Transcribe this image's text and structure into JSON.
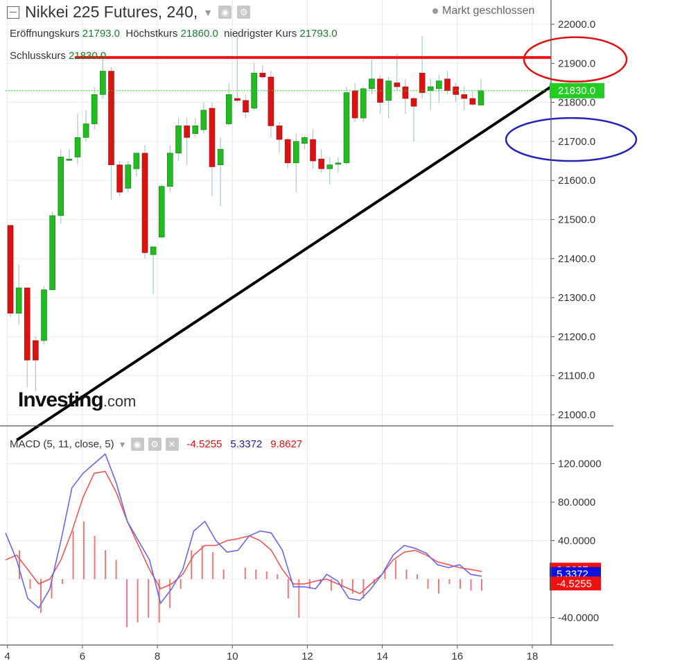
{
  "header": {
    "title": "Nikkei 225 Futures, 240,",
    "status": "Markt geschlossen"
  },
  "ohlc": {
    "open_label": "Eröffnungskurs",
    "open_value": "21793.0",
    "high_label": "Höchstkurs",
    "high_value": "21860.0",
    "low_label": "niedrigster Kurs",
    "low_value": "21793.0",
    "close_label": "Schlusskurs",
    "close_value": "21830.0"
  },
  "logo": {
    "name": "Investing",
    "suffix": ".com"
  },
  "colors": {
    "up": "#22bb22",
    "down": "#dd1111",
    "macd": "#6666ee",
    "signal": "#ee5555",
    "hist": "#ee7777"
  },
  "chart_data": [
    {
      "type": "candlestick",
      "x_ticks": [
        4,
        6,
        8,
        10,
        12,
        14,
        16,
        18
      ],
      "xlim": [
        3.95,
        18.5
      ],
      "ylim": [
        20970,
        22070
      ],
      "y_ticks": [
        "21000.0",
        "21100.0",
        "21200.0",
        "21300.0",
        "21400.0",
        "21500.0",
        "21600.0",
        "21700.0",
        "21800.0",
        "21900.0",
        "22000.0"
      ],
      "last_price": "21830.0",
      "candles": [
        {
          "o": 21485,
          "h": 21485,
          "l": 21250,
          "c": 21260
        },
        {
          "o": 21260,
          "h": 21385,
          "l": 21230,
          "c": 21325
        },
        {
          "o": 21325,
          "h": 21325,
          "l": 21070,
          "c": 21140
        },
        {
          "o": 21190,
          "h": 21200,
          "l": 21060,
          "c": 21140
        },
        {
          "o": 21190,
          "h": 21330,
          "l": 21180,
          "c": 21320
        },
        {
          "o": 21320,
          "h": 21520,
          "l": 21320,
          "c": 21510
        },
        {
          "o": 21510,
          "h": 21680,
          "l": 21490,
          "c": 21660
        },
        {
          "o": 21655,
          "h": 21680,
          "l": 21650,
          "c": 21655
        },
        {
          "o": 21660,
          "h": 21770,
          "l": 21640,
          "c": 21710
        },
        {
          "o": 21710,
          "h": 21780,
          "l": 21700,
          "c": 21745
        },
        {
          "o": 21745,
          "h": 21840,
          "l": 21730,
          "c": 21820
        },
        {
          "o": 21820,
          "h": 21920,
          "l": 21810,
          "c": 21880
        },
        {
          "o": 21880,
          "h": 21890,
          "l": 21550,
          "c": 21640
        },
        {
          "o": 21640,
          "h": 21650,
          "l": 21560,
          "c": 21570
        },
        {
          "o": 21580,
          "h": 21650,
          "l": 21570,
          "c": 21640
        },
        {
          "o": 21630,
          "h": 21670,
          "l": 21610,
          "c": 21670
        },
        {
          "o": 21670,
          "h": 21690,
          "l": 21400,
          "c": 21415
        },
        {
          "o": 21410,
          "h": 21430,
          "l": 21310,
          "c": 21430
        },
        {
          "o": 21455,
          "h": 21590,
          "l": 21450,
          "c": 21585
        },
        {
          "o": 21585,
          "h": 21690,
          "l": 21570,
          "c": 21670
        },
        {
          "o": 21670,
          "h": 21760,
          "l": 21650,
          "c": 21740
        },
        {
          "o": 21740,
          "h": 21760,
          "l": 21640,
          "c": 21710
        },
        {
          "o": 21720,
          "h": 21760,
          "l": 21710,
          "c": 21740
        },
        {
          "o": 21730,
          "h": 21800,
          "l": 21720,
          "c": 21780
        },
        {
          "o": 21785,
          "h": 21800,
          "l": 21560,
          "c": 21635
        },
        {
          "o": 21640,
          "h": 21710,
          "l": 21535,
          "c": 21680
        },
        {
          "o": 21745,
          "h": 21850,
          "l": 21740,
          "c": 21820
        },
        {
          "o": 21810,
          "h": 21980,
          "l": 21800,
          "c": 21805
        },
        {
          "o": 21805,
          "h": 21820,
          "l": 21760,
          "c": 21775
        },
        {
          "o": 21785,
          "h": 21900,
          "l": 21780,
          "c": 21875
        },
        {
          "o": 21875,
          "h": 21895,
          "l": 21860,
          "c": 21865
        },
        {
          "o": 21865,
          "h": 21880,
          "l": 21710,
          "c": 21740
        },
        {
          "o": 21740,
          "h": 21750,
          "l": 21670,
          "c": 21705
        },
        {
          "o": 21705,
          "h": 21710,
          "l": 21630,
          "c": 21645
        },
        {
          "o": 21645,
          "h": 21720,
          "l": 21570,
          "c": 21700
        },
        {
          "o": 21695,
          "h": 21715,
          "l": 21680,
          "c": 21710
        },
        {
          "o": 21705,
          "h": 21730,
          "l": 21630,
          "c": 21650
        },
        {
          "o": 21655,
          "h": 21680,
          "l": 21620,
          "c": 21630
        },
        {
          "o": 21630,
          "h": 21660,
          "l": 21590,
          "c": 21640
        },
        {
          "o": 21645,
          "h": 21660,
          "l": 21620,
          "c": 21645
        },
        {
          "o": 21645,
          "h": 21840,
          "l": 21640,
          "c": 21825
        },
        {
          "o": 21830,
          "h": 21850,
          "l": 21750,
          "c": 21760
        },
        {
          "o": 21760,
          "h": 21840,
          "l": 21750,
          "c": 21835
        },
        {
          "o": 21835,
          "h": 21910,
          "l": 21820,
          "c": 21860
        },
        {
          "o": 21860,
          "h": 21870,
          "l": 21770,
          "c": 21800
        },
        {
          "o": 21805,
          "h": 21865,
          "l": 21760,
          "c": 21855
        },
        {
          "o": 21850,
          "h": 21925,
          "l": 21830,
          "c": 21840
        },
        {
          "o": 21840,
          "h": 21860,
          "l": 21770,
          "c": 21810
        },
        {
          "o": 21810,
          "h": 21815,
          "l": 21700,
          "c": 21790
        },
        {
          "o": 21875,
          "h": 21970,
          "l": 21810,
          "c": 21825
        },
        {
          "o": 21830,
          "h": 21860,
          "l": 21780,
          "c": 21840
        },
        {
          "o": 21835,
          "h": 21870,
          "l": 21800,
          "c": 21855
        },
        {
          "o": 21860,
          "h": 21880,
          "l": 21820,
          "c": 21830
        },
        {
          "o": 21840,
          "h": 21850,
          "l": 21800,
          "c": 21820
        },
        {
          "o": 21820,
          "h": 21840,
          "l": 21780,
          "c": 21810
        },
        {
          "o": 21810,
          "h": 21830,
          "l": 21790,
          "c": 21795
        },
        {
          "o": 21793,
          "h": 21860,
          "l": 21793,
          "c": 21830
        }
      ],
      "annotations": {
        "resistance": 21915,
        "trendline": [
          [
            4.25,
            20935
          ],
          [
            18.5,
            21840
          ]
        ],
        "red_ellipse_center": [
          21910
        ],
        "blue_ellipse_center": [
          21705
        ]
      }
    },
    {
      "type": "line+bar",
      "name": "MACD (5, 11, close, 5)",
      "values_shown": {
        "hist": "-4.5255",
        "macd": "5.3372",
        "signal": "9.8627"
      },
      "ylim": [
        -62,
        140
      ],
      "y_ticks": [
        "120.0000",
        "80.0000",
        "40.0000",
        "-40.0000"
      ],
      "macd_line": [
        48,
        20,
        -20,
        -30,
        -10,
        40,
        95,
        110,
        120,
        130,
        100,
        60,
        40,
        20,
        -25,
        -10,
        10,
        50,
        60,
        40,
        28,
        30,
        45,
        50,
        48,
        30,
        -8,
        -8,
        -10,
        5,
        -2,
        -20,
        -22,
        -10,
        5,
        25,
        35,
        32,
        27,
        15,
        12,
        15,
        5,
        3
      ],
      "signal_line": [
        20,
        25,
        10,
        -5,
        0,
        20,
        50,
        85,
        110,
        112,
        90,
        60,
        35,
        10,
        -10,
        -5,
        5,
        25,
        35,
        35,
        40,
        42,
        45,
        40,
        30,
        10,
        -5,
        -5,
        -2,
        0,
        -5,
        -10,
        -15,
        -5,
        5,
        20,
        28,
        30,
        25,
        18,
        15,
        12,
        10,
        8
      ],
      "histogram": [
        30,
        -10,
        -35,
        -20,
        -5,
        50,
        60,
        45,
        30,
        20,
        -50,
        -45,
        -40,
        -45,
        -30,
        -10,
        30,
        35,
        28,
        10,
        0,
        12,
        10,
        8,
        5,
        -20,
        -40,
        -10,
        -5,
        -12,
        -8,
        -15,
        -20,
        -5,
        10,
        20,
        10,
        5,
        -10,
        -15,
        -5,
        -10,
        -12,
        -12
      ]
    }
  ]
}
